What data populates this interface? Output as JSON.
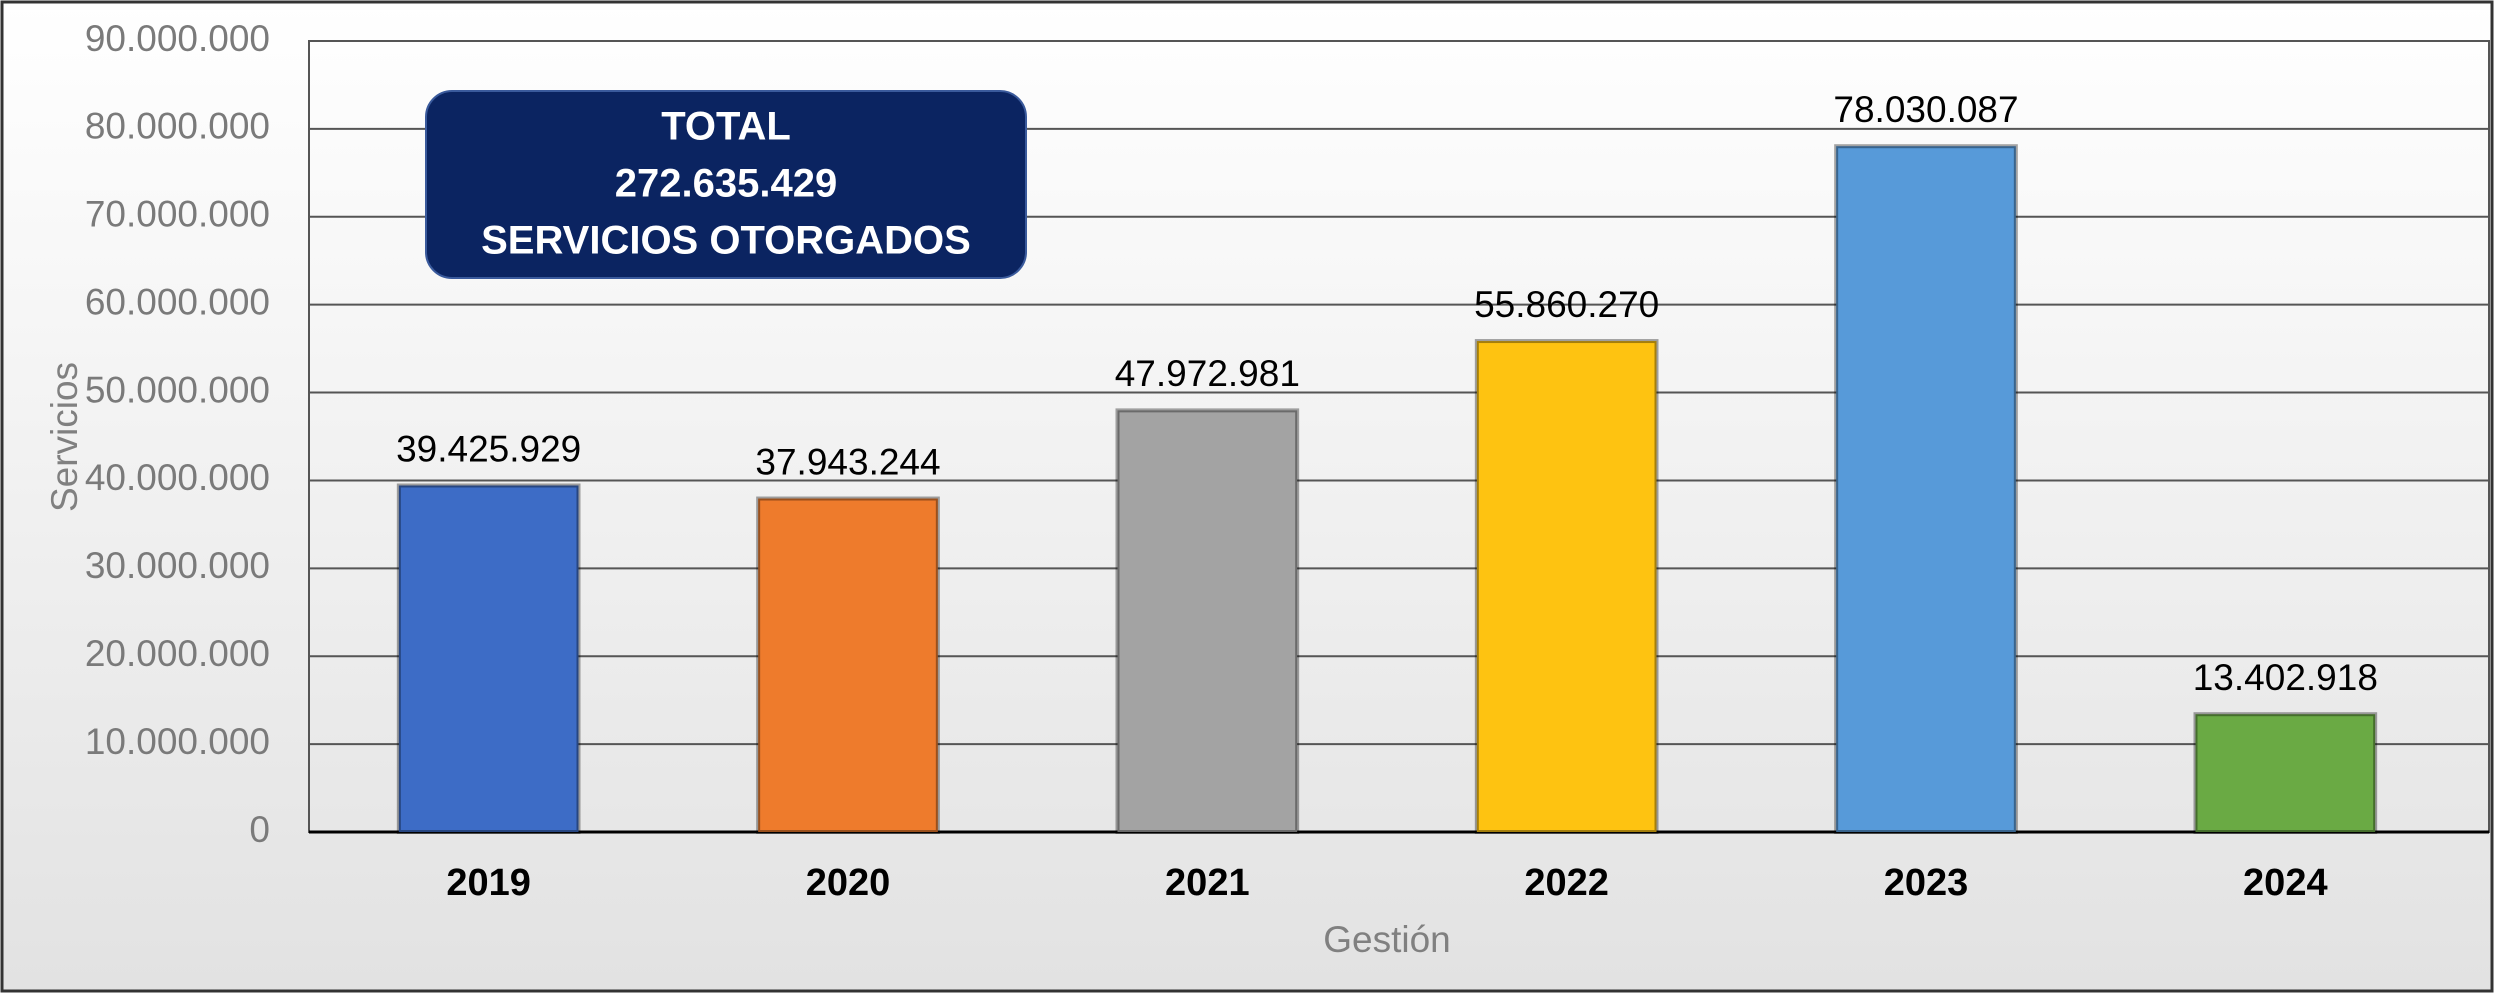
{
  "chart_data": {
    "type": "bar",
    "x_label": "Gestión",
    "y_label": "Servicios",
    "annotation": [
      "TOTAL",
      "272.635.429",
      "SERVICIOS OTORGADOS"
    ],
    "categories": [
      "2019",
      "2020",
      "2021",
      "2022",
      "2023",
      "2024"
    ],
    "values": [
      39425929,
      37943244,
      47972981,
      55860270,
      78030087,
      13402918
    ],
    "value_labels": [
      "39.425.929",
      "37.943.244",
      "47.972.981",
      "55.860.270",
      "78.030.087",
      "13.402.918"
    ],
    "colors": [
      "#3d6cc6",
      "#ee7b2c",
      "#a3a3a3",
      "#fec311",
      "#579ad9",
      "#6aaa44"
    ],
    "ylim": [
      0,
      90000000
    ],
    "yticks": [
      0,
      {
        "value": 10000000,
        "label": "10.000.000"
      },
      {
        "value": 20000000,
        "label": "20.000.000"
      },
      {
        "value": 30000000,
        "label": "30.000.000"
      },
      {
        "value": 40000000,
        "label": "40.000.000"
      },
      {
        "value": 50000000,
        "label": "50.000.000"
      },
      {
        "value": 60000000,
        "label": "60.000.000"
      },
      {
        "value": 70000000,
        "label": "70.000.000"
      },
      {
        "value": 80000000,
        "label": "80.000.000"
      },
      {
        "value": 90000000,
        "label": "90.000.000"
      }
    ],
    "grid": true
  }
}
